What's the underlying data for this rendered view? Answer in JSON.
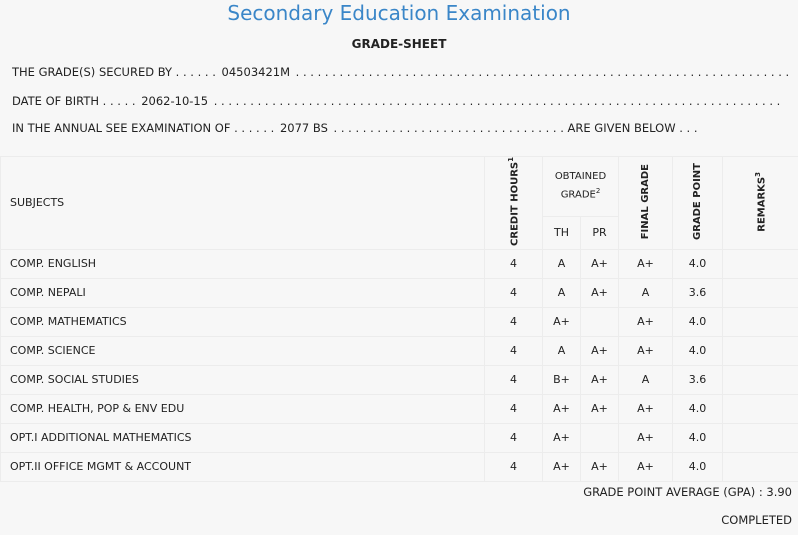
{
  "header": {
    "title": "Secondary Education Examination",
    "subtitle": "GRADE-SHEET"
  },
  "info": {
    "line1_label": "THE GRADE(S) SECURED BY . . . . . .",
    "symbol_no": "04503421M",
    "line1_dots": ". . . . . . . . . . . . . . . . . . . . . . . . . . . . . . . . . . . . . . . . . . . . . . . . . . . . . . . . . . . . . . . . . . . . . . . .",
    "line2_label": "DATE OF BIRTH . . . . .",
    "dob": "2062-10-15",
    "line2_dots": ". . . . . . . . . . . . . . . . . . . . . . . . . . . . . . . . . . . . . . . . . . . . . . . . . . . . . . . . . . . . . . . . . . . . . . . . . . . . . .",
    "line3_label": "IN THE ANNUAL SEE EXAMINATION OF . . . . . .",
    "year": "2077 BS",
    "line3_dots": ". . . . . . . . . . . . . . . . . . . . . . . . . . . . . . . .",
    "line3_suffix": "ARE GIVEN BELOW . . ."
  },
  "table": {
    "col_subjects": "SUBJECTS",
    "col_credit": "CREDIT HOURS",
    "col_credit_sup": "1",
    "col_obtained": "OBTAINED GRADE",
    "col_obtained_sup": "2",
    "col_th": "TH",
    "col_pr": "PR",
    "col_final": "FINAL GRADE",
    "col_gp": "GRADE POINT",
    "col_remarks": "REMARKS",
    "col_remarks_sup": "3",
    "rows": [
      {
        "subject": "COMP. ENGLISH",
        "credit": "4",
        "th": "A",
        "pr": "A+",
        "final": "A+",
        "gp": "4.0",
        "remarks": ""
      },
      {
        "subject": "COMP. NEPALI",
        "credit": "4",
        "th": "A",
        "pr": "A+",
        "final": "A",
        "gp": "3.6",
        "remarks": ""
      },
      {
        "subject": "COMP. MATHEMATICS",
        "credit": "4",
        "th": "A+",
        "pr": "",
        "final": "A+",
        "gp": "4.0",
        "remarks": ""
      },
      {
        "subject": "COMP. SCIENCE",
        "credit": "4",
        "th": "A",
        "pr": "A+",
        "final": "A+",
        "gp": "4.0",
        "remarks": ""
      },
      {
        "subject": "COMP. SOCIAL STUDIES",
        "credit": "4",
        "th": "B+",
        "pr": "A+",
        "final": "A",
        "gp": "3.6",
        "remarks": ""
      },
      {
        "subject": "COMP. HEALTH, POP & ENV EDU",
        "credit": "4",
        "th": "A+",
        "pr": "A+",
        "final": "A+",
        "gp": "4.0",
        "remarks": ""
      },
      {
        "subject": "OPT.I ADDITIONAL MATHEMATICS",
        "credit": "4",
        "th": "A+",
        "pr": "",
        "final": "A+",
        "gp": "4.0",
        "remarks": ""
      },
      {
        "subject": "OPT.II OFFICE MGMT & ACCOUNT",
        "credit": "4",
        "th": "A+",
        "pr": "A+",
        "final": "A+",
        "gp": "4.0",
        "remarks": ""
      }
    ]
  },
  "footer": {
    "gpa_label": "GRADE POINT AVERAGE (GPA) :",
    "gpa_value": "3.90",
    "status": "COMPLETED"
  },
  "colors": {
    "title": "#3a86c8",
    "background": "#f7f7f7",
    "grid": "#ececec"
  }
}
